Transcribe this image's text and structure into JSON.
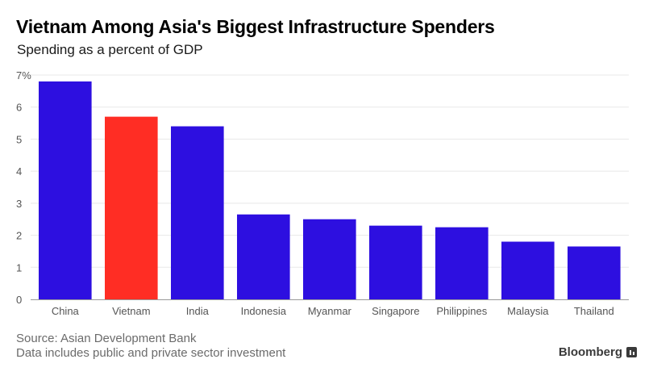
{
  "header": {
    "title": "Vietnam Among Asia's Biggest Infrastructure Spenders",
    "subtitle": "Spending as a percent of GDP"
  },
  "footer": {
    "source": "Source: Asian Development Bank",
    "note": "Data includes public and private sector investment",
    "brand": "Bloomberg",
    "brand_icon": "bloomberg-logo-icon"
  },
  "colors": {
    "bar_default": "#2d0fe0",
    "bar_highlight": "#ff2d24",
    "grid": "#e8e8e8",
    "axis": "#999999",
    "tick_text": "#555555"
  },
  "chart_data": {
    "type": "bar",
    "categories": [
      "China",
      "Vietnam",
      "India",
      "Indonesia",
      "Myanmar",
      "Singapore",
      "Philippines",
      "Malaysia",
      "Thailand"
    ],
    "values": [
      6.8,
      5.7,
      5.4,
      2.65,
      2.5,
      2.3,
      2.25,
      1.8,
      1.65
    ],
    "highlight": "Vietnam",
    "ylim": [
      0,
      7
    ],
    "yticks": [
      "0",
      "1",
      "2",
      "3",
      "4",
      "5",
      "6",
      "7%"
    ],
    "grid": true,
    "xlabel": "",
    "ylabel": ""
  }
}
